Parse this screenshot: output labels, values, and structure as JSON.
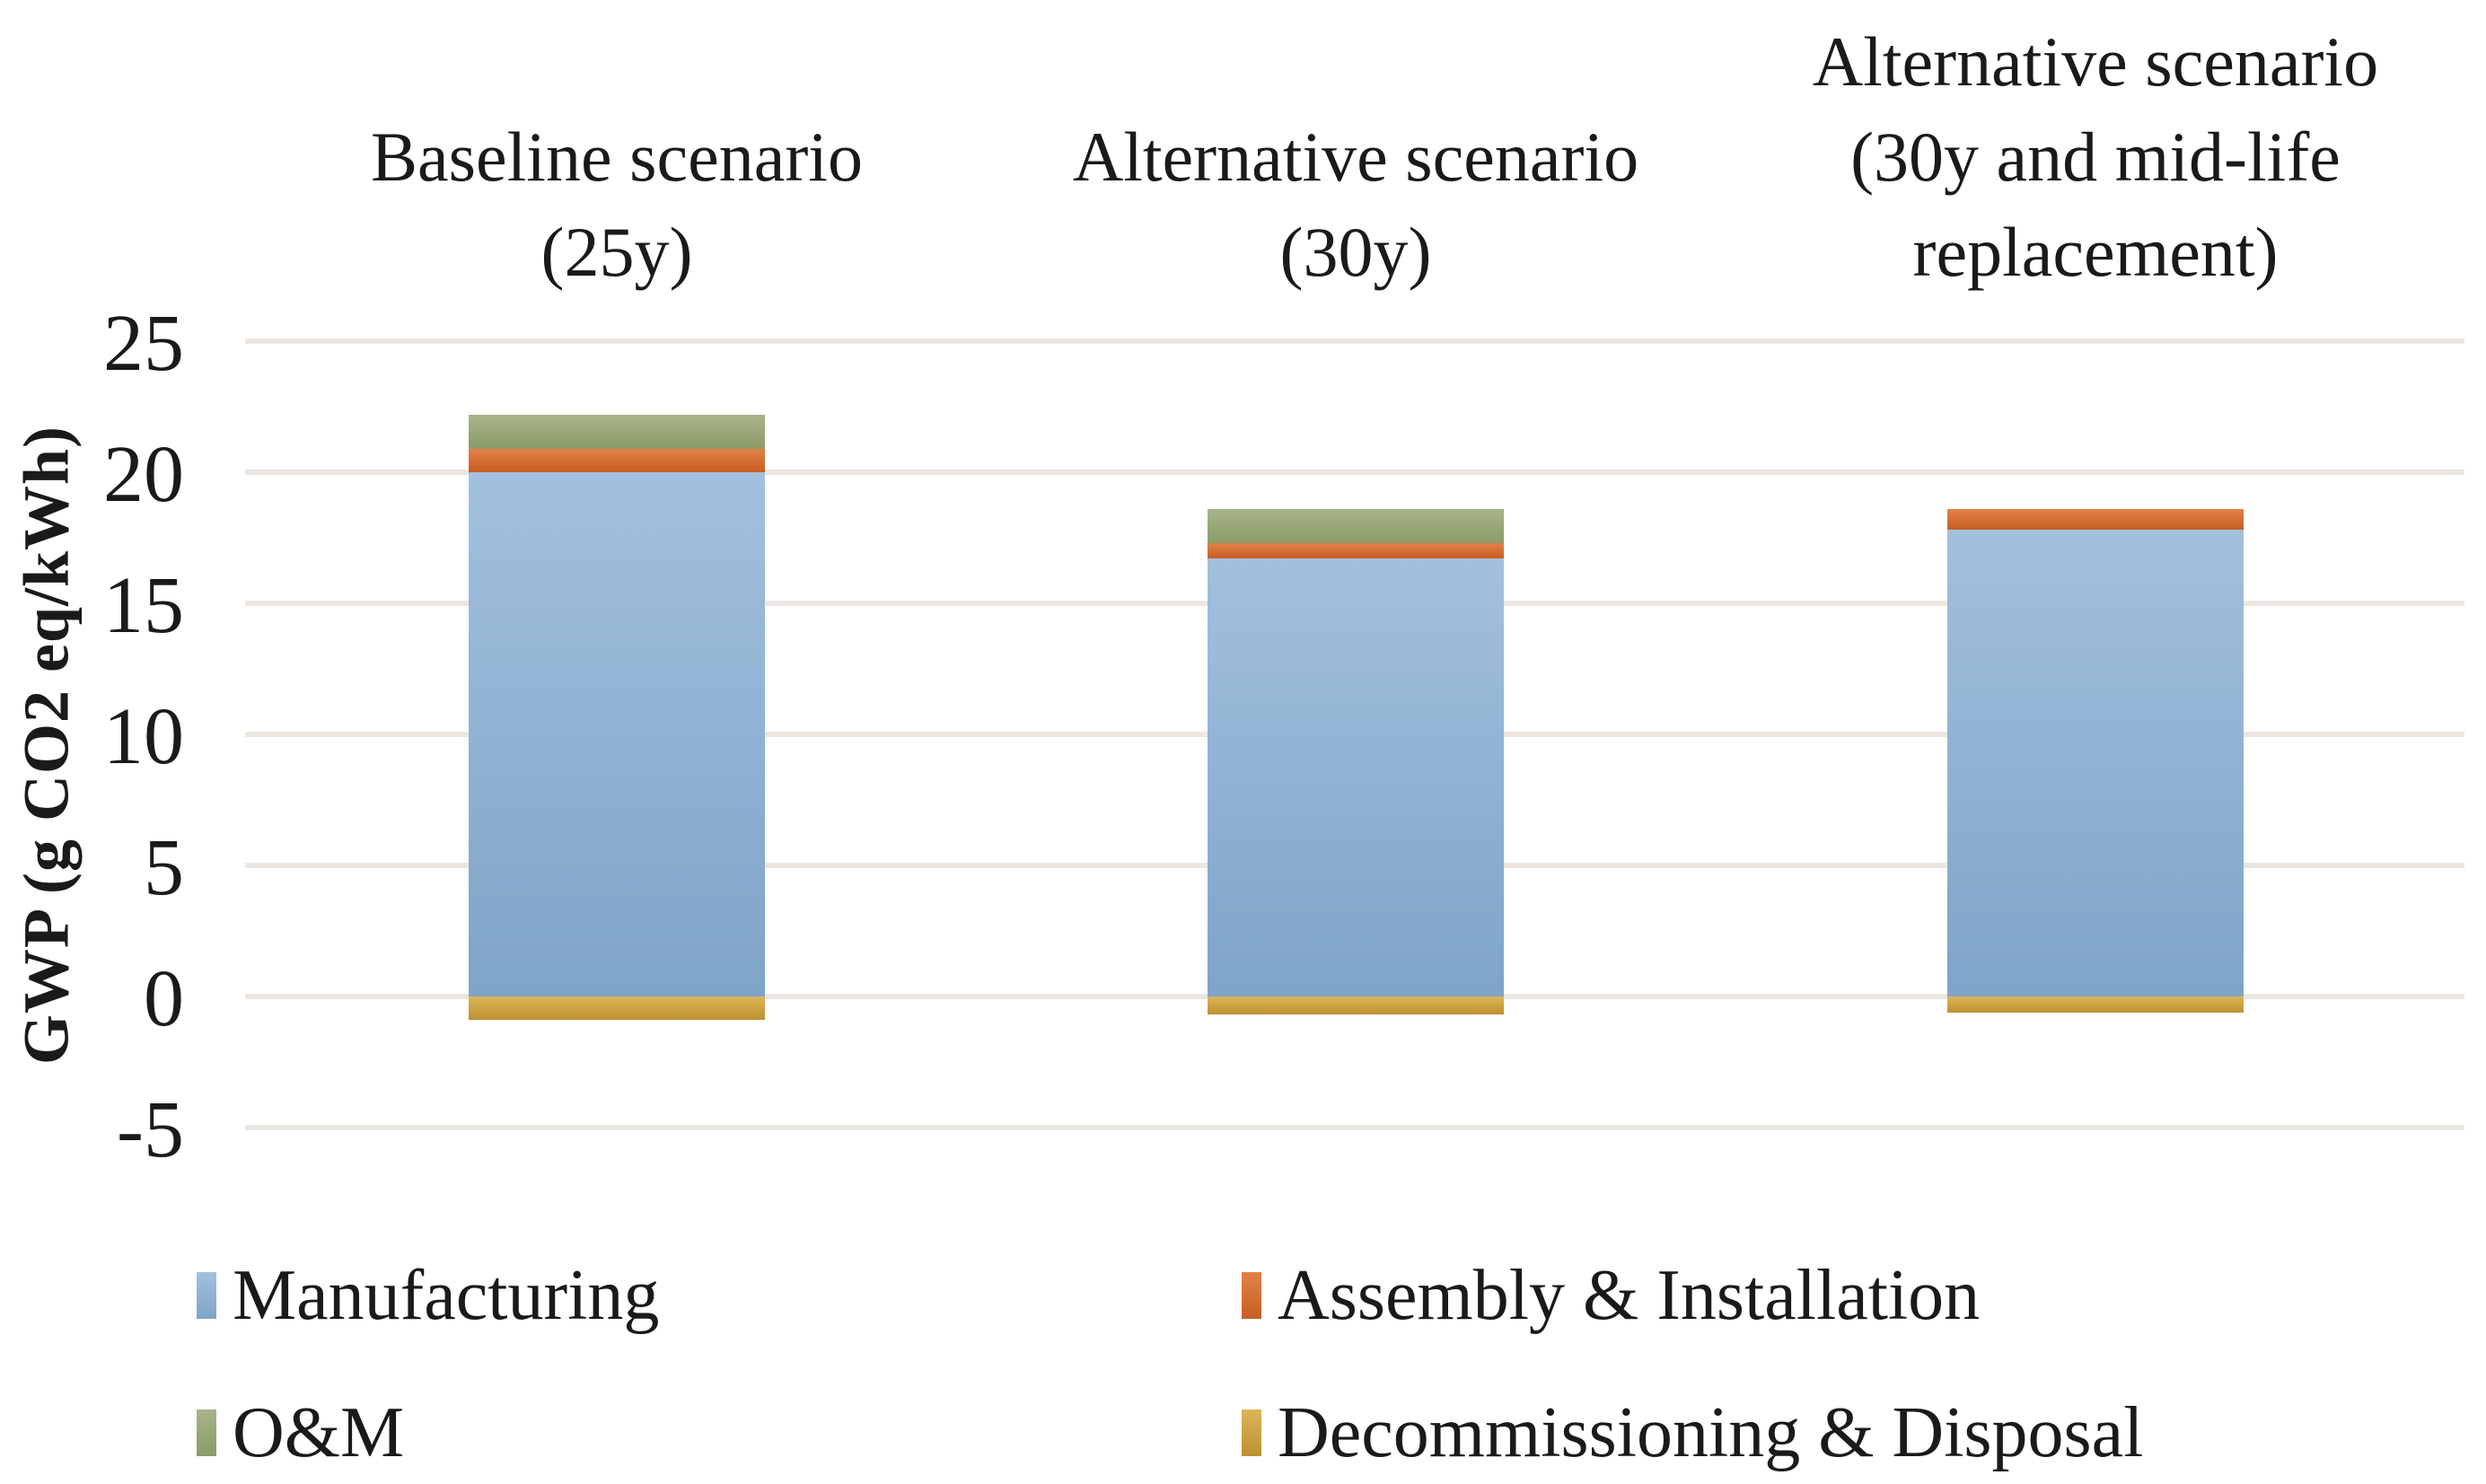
{
  "figure": {
    "background": "#FFFFFF",
    "gridline_color": "#ECE6E1",
    "text_color": "#1A1A1A"
  },
  "chart_data": {
    "type": "bar",
    "stacked": true,
    "title": "",
    "xlabel": "",
    "ylabel": "GWP (g CO2 eq/kWh)",
    "grid": "horizontal",
    "legend_position": "bottom",
    "ylim": [
      -7.5,
      26
    ],
    "yticks": [
      25,
      20,
      15,
      10,
      5,
      0,
      -5
    ],
    "categories": [
      {
        "lines": [
          "Baseline scenario",
          "(25y)"
        ]
      },
      {
        "lines": [
          "Alternative scenario",
          "(30y)"
        ]
      },
      {
        "lines": [
          "Alternative scenario",
          "(30y and mid-life",
          "replacement)"
        ]
      }
    ],
    "series": [
      {
        "name": "Manufacturing",
        "values": [
          20.0,
          16.7,
          17.8
        ],
        "color": "#8FB3D6",
        "color_top": "#A3C0DE",
        "color_bottom": "#7EA4C8"
      },
      {
        "name": "Assembly & Installation",
        "values": [
          0.9,
          0.6,
          0.8
        ],
        "color": "#D96F33",
        "color_top": "#E28248",
        "color_bottom": "#C75E23"
      },
      {
        "name": "O&M",
        "values": [
          1.3,
          1.3,
          0.0
        ],
        "color": "#99A878",
        "color_top": "#A7B489",
        "color_bottom": "#8B9B68"
      },
      {
        "name": "Decommissioning & Disposal",
        "values": [
          -0.9,
          -0.7,
          -0.6
        ],
        "color": "#CDA445",
        "color_top": "#DDB558",
        "color_bottom": "#BC9130"
      }
    ],
    "stack_totals": [
      22.2,
      18.6,
      18.6
    ]
  }
}
